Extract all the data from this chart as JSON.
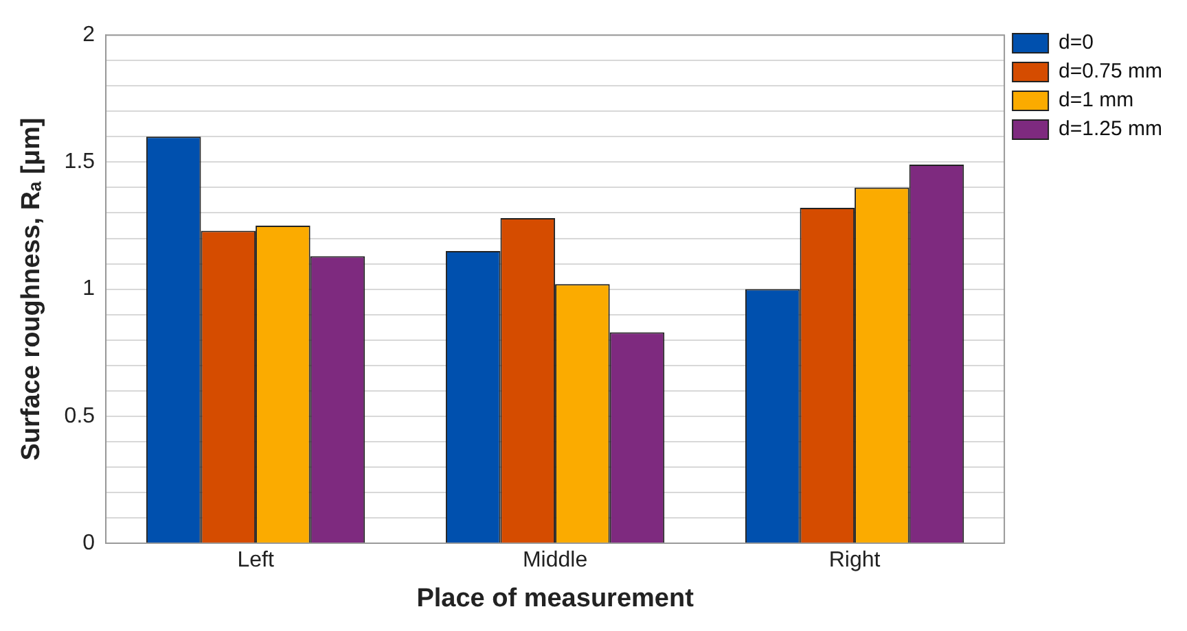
{
  "chart_data": {
    "type": "bar",
    "xlabel": "Place of measurement",
    "ylabel": "Surface roughness, Rₐ [μm]",
    "categories": [
      "Left",
      "Middle",
      "Right"
    ],
    "series": [
      {
        "name": "d=0",
        "color": "#0050ae",
        "values": [
          1.6,
          1.15,
          1.0
        ]
      },
      {
        "name": "d=0.75 mm",
        "color": "#d54c00",
        "values": [
          1.23,
          1.28,
          1.32
        ]
      },
      {
        "name": "d=1 mm",
        "color": "#fbab00",
        "values": [
          1.25,
          1.02,
          1.4
        ]
      },
      {
        "name": "d=1.25 mm",
        "color": "#7e2a7f",
        "values": [
          1.13,
          0.83,
          1.49
        ]
      }
    ],
    "ylim": [
      0,
      2
    ],
    "yticks": [
      0,
      {
        "value": 0.1,
        "label": null
      },
      {
        "value": 0.2,
        "label": null
      },
      {
        "value": 0.3,
        "label": null
      },
      {
        "value": 0.4,
        "label": null
      },
      0.5,
      {
        "value": 0.6,
        "label": null
      },
      {
        "value": 0.7,
        "label": null
      },
      {
        "value": 0.8,
        "label": null
      },
      {
        "value": 0.9,
        "label": null
      },
      1,
      {
        "value": 1.1,
        "label": null
      },
      {
        "value": 1.2,
        "label": null
      },
      {
        "value": 1.3,
        "label": null
      },
      {
        "value": 1.4,
        "label": null
      },
      1.5,
      {
        "value": 1.6,
        "label": null
      },
      {
        "value": 1.7,
        "label": null
      },
      {
        "value": 1.8,
        "label": null
      },
      {
        "value": 1.9,
        "label": null
      },
      2
    ],
    "grid": "y",
    "legend": "top right"
  }
}
